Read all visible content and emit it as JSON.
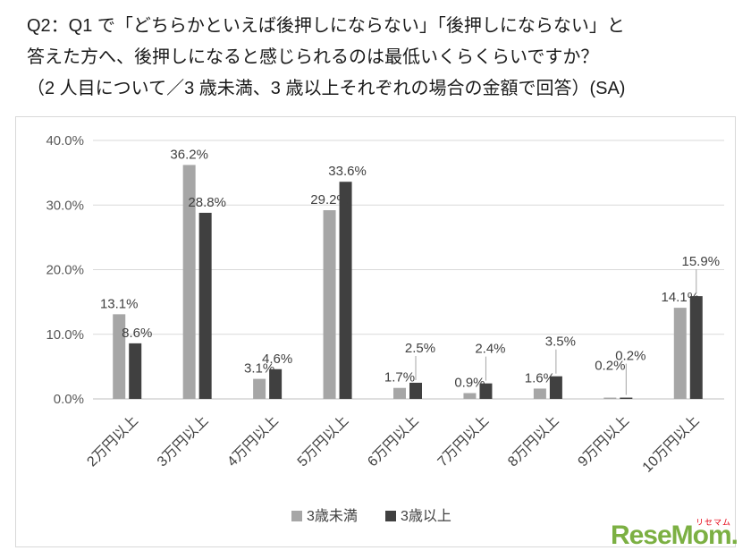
{
  "title": {
    "line1": "Q2：Q1 で「どちらかといえば後押しにならない」「後押しにならない」と",
    "line2": "答えた方へ、後押しになると感じられるのは最低いくらくらいですか？",
    "line3": "（2 人目について／3 歳未満、3 歳以上それぞれの場合の金額で回答）(SA)"
  },
  "chart_data": {
    "type": "bar",
    "categories": [
      "2万円以上",
      "3万円以上",
      "4万円以上",
      "5万円以上",
      "6万円以上",
      "7万円以上",
      "8万円以上",
      "9万円以上",
      "10万円以上"
    ],
    "series": [
      {
        "name": "3歳未満",
        "color": "#a6a6a6",
        "values": [
          13.1,
          36.2,
          3.1,
          29.2,
          1.7,
          0.9,
          1.6,
          0.2,
          14.1
        ]
      },
      {
        "name": "3歳以上",
        "color": "#404040",
        "values": [
          8.6,
          28.8,
          4.6,
          33.6,
          2.5,
          2.4,
          3.5,
          0.2,
          15.9
        ]
      }
    ],
    "title": "",
    "xlabel": "",
    "ylabel": "",
    "ylim": [
      0,
      40
    ],
    "yticks": [
      "0.0%",
      "10.0%",
      "20.0%",
      "30.0%",
      "40.0%"
    ],
    "grid": true,
    "legend_position": "bottom",
    "value_suffix": "%",
    "axis_color": "#595959",
    "label_color": "#404040",
    "gridline_color": "#d9d9d9",
    "baseline_color": "#bfbfbf"
  },
  "logo": {
    "text": "ReseMom",
    "dot": ".",
    "sub": "リセマム",
    "color": "#7cb043",
    "sub_color": "#e60012"
  }
}
